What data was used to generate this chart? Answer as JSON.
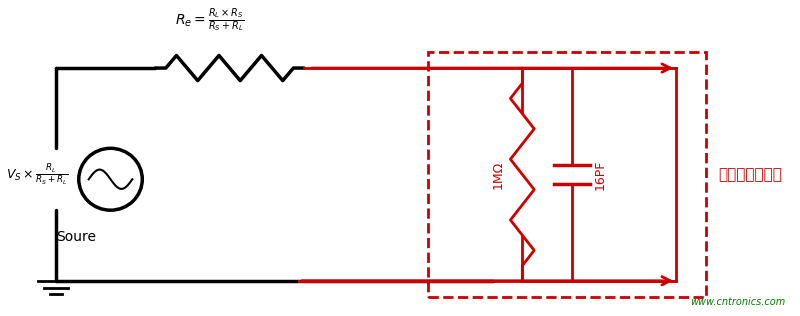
{
  "bg_color": "#ffffff",
  "black": "#000000",
  "red": "#cc0000",
  "green": "#008000",
  "fig_width": 8.0,
  "fig_height": 3.16,
  "watermark": "www.cntronics.com",
  "label_oscilloscope": "示波器等效模型",
  "label_source": "Soure",
  "label_Re": "R",
  "label_Re_sub": "e",
  "label_Re_eq": "=",
  "label_Re_formula": "$\\frac{R_L\\times R_S}{R_S+R_L}$",
  "label_Vs": "$V_S\\times\\frac{R_L}{R_S+R_L}$",
  "label_1MΩ": "1MΩ",
  "label_16PF": "16PF"
}
